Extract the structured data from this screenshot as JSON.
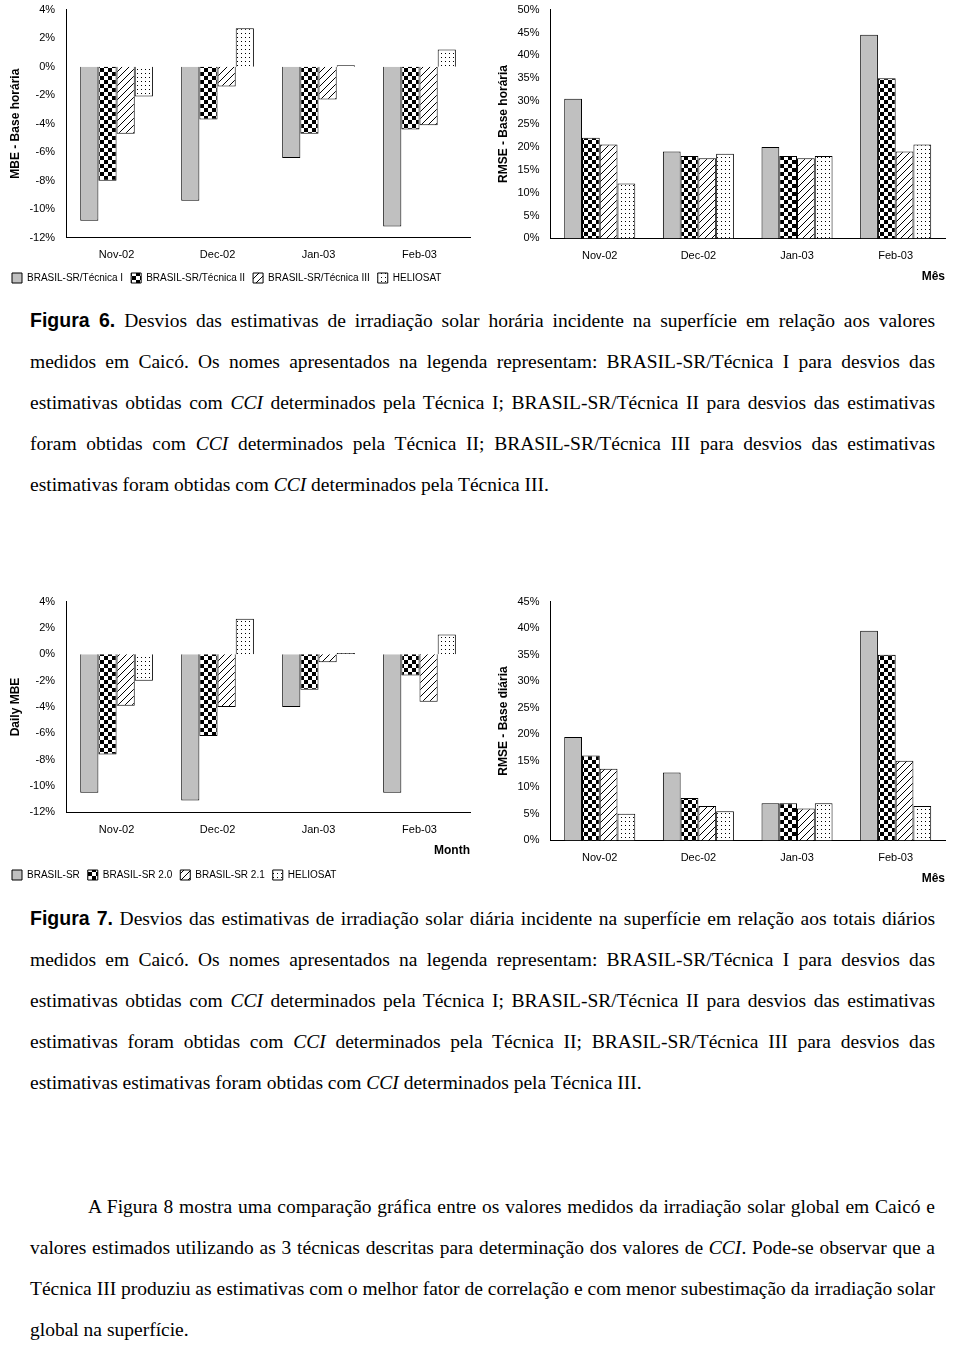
{
  "chart_data": [
    {
      "type": "bar",
      "y_label": "MBE - Base horária",
      "categories": [
        "Nov-02",
        "Dec-02",
        "Jan-03",
        "Feb-03"
      ],
      "series": [
        {
          "name": "BRASIL-SR/Técnica I",
          "color": "#c0c0c0",
          "values": [
            -10.8,
            -9.4,
            -6.4,
            -11.2
          ]
        },
        {
          "name": "BRASIL-SR/Técnica II",
          "color": "#000000",
          "values": [
            -8.0,
            -3.7,
            -4.7,
            -4.4
          ]
        },
        {
          "name": "BRASIL-SR/Técnica III",
          "color": "#000000",
          "values": [
            -4.7,
            -1.4,
            -2.3,
            -4.1
          ]
        },
        {
          "name": "HELIOSAT",
          "color": "#000000",
          "values": [
            -2.1,
            2.7,
            0.1,
            1.2
          ]
        }
      ],
      "ylim": [
        -12,
        4
      ],
      "yticks": [
        {
          "value": -12,
          "label": "-12%"
        },
        {
          "value": -10,
          "label": "-10%"
        },
        {
          "value": -8,
          "label": "-8%"
        },
        {
          "value": -6,
          "label": "-6%"
        },
        {
          "value": -4,
          "label": "-4%"
        },
        {
          "value": -2,
          "label": "-2%"
        },
        {
          "value": 0,
          "label": "0%"
        },
        {
          "value": 2,
          "label": "2%"
        },
        {
          "value": 4,
          "label": "4%"
        }
      ],
      "grid": false,
      "legend": "bottom"
    },
    {
      "type": "bar",
      "y_label": "RMSE - Base horária",
      "x_label": "Mês",
      "categories": [
        "Nov-02",
        "Dec-02",
        "Jan-03",
        "Feb-03"
      ],
      "series": [
        {
          "color": "#c0c0c0",
          "values": [
            30.5,
            19.0,
            20.0,
            44.5
          ]
        },
        {
          "color": "#000000",
          "values": [
            22.0,
            18.0,
            18.0,
            35.0
          ]
        },
        {
          "color": "#000000",
          "values": [
            20.5,
            17.5,
            17.5,
            19.0
          ]
        },
        {
          "color": "#000000",
          "values": [
            12.0,
            18.5,
            18.0,
            20.5
          ]
        }
      ],
      "ylim": [
        0,
        50
      ],
      "yticks": [
        {
          "value": 0,
          "label": "0%"
        },
        {
          "value": 5,
          "label": "5%"
        },
        {
          "value": 10,
          "label": "10%"
        },
        {
          "value": 15,
          "label": "15%"
        },
        {
          "value": 20,
          "label": "20%"
        },
        {
          "value": 25,
          "label": "25%"
        },
        {
          "value": 30,
          "label": "30%"
        },
        {
          "value": 35,
          "label": "35%"
        },
        {
          "value": 40,
          "label": "40%"
        },
        {
          "value": 45,
          "label": "45%"
        },
        {
          "value": 50,
          "label": "50%"
        }
      ],
      "grid": false
    },
    {
      "type": "bar",
      "y_label": "Daily MBE",
      "x_label": "Month",
      "categories": [
        "Nov-02",
        "Dec-02",
        "Jan-03",
        "Feb-03"
      ],
      "series": [
        {
          "name": "BRASIL-SR",
          "color": "#c0c0c0",
          "values": [
            -10.5,
            -11.1,
            -4.0,
            -10.5
          ]
        },
        {
          "name": "BRASIL-SR 2.0",
          "color": "#000000",
          "values": [
            -7.6,
            -6.2,
            -2.7,
            -1.6
          ]
        },
        {
          "name": "BRASIL-SR 2.1",
          "color": "#000000",
          "values": [
            -3.9,
            -4.0,
            -0.6,
            -3.6
          ]
        },
        {
          "name": "HELIOSAT",
          "color": "#000000",
          "values": [
            -2.0,
            2.7,
            0.1,
            1.5
          ]
        }
      ],
      "ylim": [
        -12,
        4
      ],
      "yticks": [
        {
          "value": -12,
          "label": "-12%"
        },
        {
          "value": -10,
          "label": "-10%"
        },
        {
          "value": -8,
          "label": "-8%"
        },
        {
          "value": -6,
          "label": "-6%"
        },
        {
          "value": -4,
          "label": "-4%"
        },
        {
          "value": -2,
          "label": "-2%"
        },
        {
          "value": 0,
          "label": "0%"
        },
        {
          "value": 2,
          "label": "2%"
        },
        {
          "value": 4,
          "label": "4%"
        }
      ],
      "grid": false,
      "legend": "bottom"
    },
    {
      "type": "bar",
      "y_label": "RMSE - Base diária",
      "x_label": "Mês",
      "categories": [
        "Nov-02",
        "Dec-02",
        "Jan-03",
        "Feb-03"
      ],
      "series": [
        {
          "color": "#c0c0c0",
          "values": [
            19.5,
            12.8,
            7.0,
            39.5
          ]
        },
        {
          "color": "#000000",
          "values": [
            16.0,
            8.0,
            7.0,
            35.0
          ]
        },
        {
          "color": "#000000",
          "values": [
            13.5,
            6.5,
            6.0,
            15.0
          ]
        },
        {
          "color": "#000000",
          "values": [
            5.0,
            5.5,
            7.0,
            6.5
          ]
        }
      ],
      "ylim": [
        0,
        45
      ],
      "yticks": [
        {
          "value": 0,
          "label": "0%"
        },
        {
          "value": 5,
          "label": "5%"
        },
        {
          "value": 10,
          "label": "10%"
        },
        {
          "value": 15,
          "label": "15%"
        },
        {
          "value": 20,
          "label": "20%"
        },
        {
          "value": 25,
          "label": "25%"
        },
        {
          "value": 30,
          "label": "30%"
        },
        {
          "value": 35,
          "label": "35%"
        },
        {
          "value": 40,
          "label": "40%"
        },
        {
          "value": 45,
          "label": "45%"
        }
      ],
      "grid": false
    }
  ],
  "document": {
    "captions": [
      {
        "label": "Figura 6.",
        "runs": [
          "Desvios das estimativas de irradiação solar horária incidente na superfície em relação aos valores medidos em Caicó. Os nomes apresentados na legenda representam: BRASIL-SR/Técnica I para desvios das estimativas obtidas com ",
          {
            "italic": "CCI"
          },
          " determinados pela Técnica I; BRASIL-SR/Técnica II para desvios das estimativas foram obtidas com ",
          {
            "italic": "CCI"
          },
          " determinados pela Técnica II; BRASIL-SR/Técnica III para desvios das estimativas estimativas foram obtidas com ",
          {
            "italic": "CCI"
          },
          " determinados pela Técnica III."
        ]
      },
      {
        "label": "Figura 7.",
        "runs": [
          "Desvios das estimativas de irradiação solar diária incidente na superfície em relação aos totais diários medidos em Caicó. Os nomes apresentados na legenda representam: BRASIL-SR/Técnica I para desvios das estimativas obtidas com ",
          {
            "italic": "CCI"
          },
          " determinados pela Técnica I; BRASIL-SR/Técnica II para desvios das estimativas estimativas foram obtidas com ",
          {
            "italic": "CCI"
          },
          " determinados pela Técnica II; BRASIL-SR/Técnica III para desvios das estimativas estimativas foram obtidas com ",
          {
            "italic": "CCI"
          },
          " determinados pela Técnica III."
        ]
      }
    ],
    "paragraph": {
      "runs": [
        "A Figura 8 mostra uma comparação gráfica entre os valores medidos da irradiação solar global em Caicó e valores estimados utilizando as 3 técnicas descritas para determinação dos valores de ",
        {
          "italic": "CCI"
        },
        ". Pode-se observar que a Técnica III produziu as estimativas com o melhor fator de correlação e com menor subestimação da irradiação solar global na superfície."
      ]
    }
  }
}
